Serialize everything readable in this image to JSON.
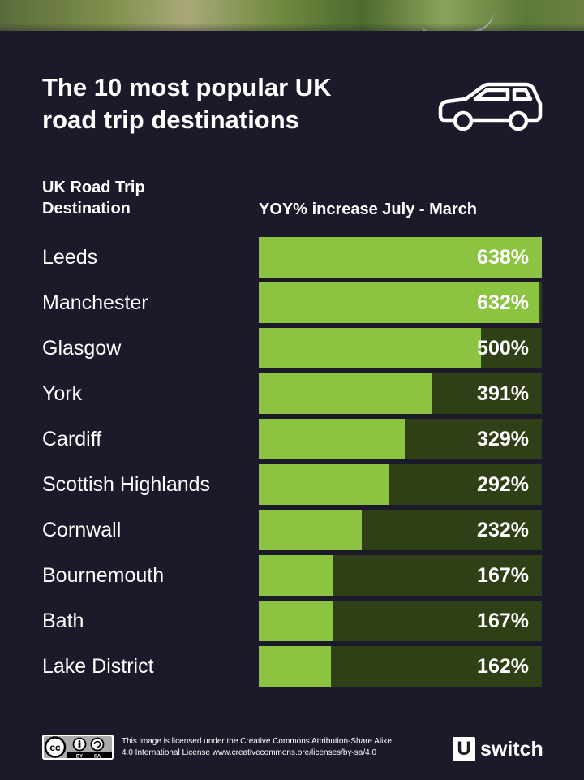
{
  "title_line1": "The 10 most popular UK",
  "title_line2": "road trip destinations",
  "column_left_line1": "UK Road Trip",
  "column_left_line2": "Destination",
  "column_right": "YOY% increase July - March",
  "icons": {
    "car": "car-icon",
    "cc": "creative-commons-icon",
    "by": "attribution-icon",
    "sa": "share-alike-icon"
  },
  "colors": {
    "background": "#1b1a2b",
    "bar_fill": "#8cc441",
    "bar_track": "#304016",
    "text": "#ffffff"
  },
  "chart_data": {
    "type": "bar",
    "orientation": "horizontal",
    "title": "The 10 most popular UK road trip destinations",
    "xlabel": "YOY% increase July - March",
    "ylabel": "UK Road Trip Destination",
    "xlim": [
      0,
      638
    ],
    "grid": false,
    "categories": [
      "Leeds",
      "Manchester",
      "Glasgow",
      "York",
      "Cardiff",
      "Scottish Highlands",
      "Cornwall",
      "Bournemouth",
      "Bath",
      "Lake District"
    ],
    "values": [
      638,
      632,
      500,
      391,
      329,
      292,
      232,
      167,
      167,
      162
    ],
    "value_labels": [
      "638%",
      "632%",
      "500%",
      "391%",
      "329%",
      "292%",
      "232%",
      "167%",
      "167%",
      "162%"
    ]
  },
  "footer": {
    "cc_text": "cc",
    "by_text": "BY",
    "sa_text": "SA",
    "license_line1": "This image is licensed under the Creative Commons Attribution-Share Alike",
    "license_line2": "4.0 International License www.creativecommons.ore/licenses/by-sa/4.0",
    "logo_letter": "U",
    "logo_word": "switch"
  }
}
